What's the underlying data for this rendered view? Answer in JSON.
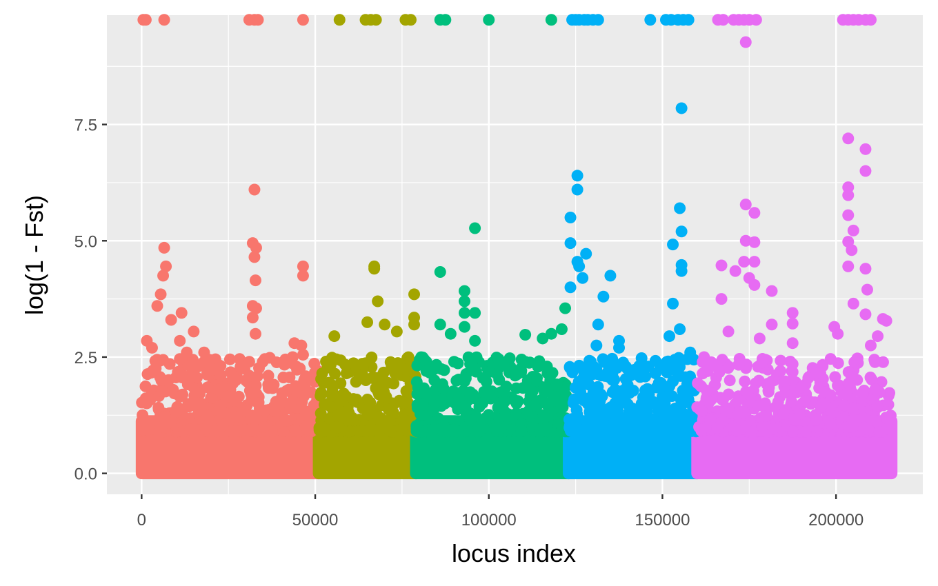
{
  "chart_data": {
    "type": "scatter",
    "title": "",
    "xlabel": "locus index",
    "ylabel": "log(1 - Fst)",
    "xlim": [
      -10000,
      225000
    ],
    "ylim": [
      -0.45,
      9.85
    ],
    "x_ticks": [
      0,
      50000,
      100000,
      150000,
      200000
    ],
    "x_tick_labels": [
      "0",
      "50000",
      "100000",
      "150000",
      "200000"
    ],
    "y_ticks": [
      0,
      2.5,
      5,
      7.5
    ],
    "y_tick_labels": [
      "0.0",
      "2.5",
      "5.0",
      "7.5"
    ],
    "grid": true,
    "legend": "none",
    "background": "#ebebeb",
    "grid_color": "#ffffff",
    "series": [
      {
        "color": "#f8766d",
        "x_range": [
          0,
          51000
        ],
        "points": [
          [
            500,
            9.75
          ],
          [
            1200,
            9.75
          ],
          [
            6500,
            9.75
          ],
          [
            31000,
            9.75
          ],
          [
            32500,
            9.75
          ],
          [
            33500,
            9.75
          ],
          [
            46500,
            9.75
          ],
          [
            6500,
            4.85
          ],
          [
            7000,
            4.45
          ],
          [
            6200,
            4.25
          ],
          [
            5500,
            3.85
          ],
          [
            4500,
            3.6
          ],
          [
            11500,
            3.45
          ],
          [
            15000,
            3.05
          ],
          [
            1500,
            2.85
          ],
          [
            3000,
            2.7
          ],
          [
            8500,
            3.3
          ],
          [
            11000,
            2.85
          ],
          [
            13000,
            2.6
          ],
          [
            18000,
            2.6
          ],
          [
            18000,
            2.4
          ],
          [
            32500,
            6.1
          ],
          [
            32000,
            4.95
          ],
          [
            33000,
            4.85
          ],
          [
            32500,
            4.65
          ],
          [
            32800,
            4.15
          ],
          [
            32000,
            3.6
          ],
          [
            33000,
            3.55
          ],
          [
            32000,
            3.35
          ],
          [
            32800,
            3.0
          ],
          [
            31000,
            2.4
          ],
          [
            31000,
            2.1
          ],
          [
            36500,
            2.1
          ],
          [
            30000,
            2.0
          ],
          [
            46500,
            4.45
          ],
          [
            46500,
            4.25
          ],
          [
            44000,
            2.8
          ],
          [
            46000,
            2.75
          ],
          [
            46500,
            2.55
          ],
          [
            43500,
            2.5
          ],
          [
            44500,
            2.3
          ],
          [
            19000,
            1.85
          ],
          [
            22000,
            1.8
          ],
          [
            25000,
            1.65
          ],
          [
            28000,
            1.65
          ],
          [
            35500,
            1.35
          ],
          [
            40000,
            1.5
          ]
        ]
      },
      {
        "color": "#a3a500",
        "x_range": [
          51000,
          79000
        ],
        "points": [
          [
            57000,
            9.75
          ],
          [
            64500,
            9.75
          ],
          [
            66000,
            9.75
          ],
          [
            67500,
            9.75
          ],
          [
            76000,
            9.75
          ],
          [
            77500,
            9.75
          ],
          [
            67000,
            4.45
          ],
          [
            67000,
            4.4
          ],
          [
            78500,
            3.85
          ],
          [
            68000,
            3.7
          ],
          [
            70000,
            3.2
          ],
          [
            65000,
            3.25
          ],
          [
            73500,
            3.05
          ],
          [
            55500,
            2.95
          ],
          [
            78500,
            3.35
          ],
          [
            78500,
            3.2
          ],
          [
            59000,
            2.15
          ],
          [
            52000,
            2.15
          ],
          [
            72000,
            2.3
          ],
          [
            75000,
            2.25
          ],
          [
            57500,
            1.55
          ],
          [
            61000,
            1.6
          ]
        ]
      },
      {
        "color": "#00bf7d",
        "x_range": [
          79000,
          123000
        ],
        "points": [
          [
            86000,
            9.75
          ],
          [
            87500,
            9.75
          ],
          [
            100000,
            9.75
          ],
          [
            118000,
            9.75
          ],
          [
            96000,
            5.27
          ],
          [
            86000,
            4.33
          ],
          [
            93000,
            3.92
          ],
          [
            93000,
            3.7
          ],
          [
            96000,
            3.45
          ],
          [
            93000,
            3.45
          ],
          [
            86000,
            3.2
          ],
          [
            93000,
            3.15
          ],
          [
            110500,
            2.98
          ],
          [
            96000,
            2.85
          ],
          [
            89000,
            3.0
          ],
          [
            82000,
            2.4
          ],
          [
            82000,
            2.2
          ],
          [
            110500,
            2.4
          ],
          [
            115500,
            2.9
          ],
          [
            118000,
            3.0
          ],
          [
            121000,
            3.1
          ],
          [
            122000,
            3.55
          ],
          [
            95000,
            2.3
          ],
          [
            90000,
            2.4
          ],
          [
            100000,
            1.7
          ],
          [
            104000,
            1.4
          ],
          [
            108000,
            1.5
          ],
          [
            112000,
            1.8
          ]
        ]
      },
      {
        "color": "#00b0f6",
        "x_range": [
          123000,
          160000
        ],
        "points": [
          [
            124000,
            9.75
          ],
          [
            125000,
            9.75
          ],
          [
            126000,
            9.75
          ],
          [
            127500,
            9.75
          ],
          [
            128500,
            9.75
          ],
          [
            130000,
            9.75
          ],
          [
            131500,
            9.75
          ],
          [
            146500,
            9.75
          ],
          [
            151000,
            9.75
          ],
          [
            152500,
            9.75
          ],
          [
            154500,
            9.75
          ],
          [
            156000,
            9.75
          ],
          [
            157500,
            9.75
          ],
          [
            155500,
            7.85
          ],
          [
            125500,
            6.4
          ],
          [
            125500,
            6.1
          ],
          [
            123500,
            5.5
          ],
          [
            155000,
            5.7
          ],
          [
            155500,
            5.2
          ],
          [
            123500,
            4.95
          ],
          [
            153000,
            4.92
          ],
          [
            128000,
            4.72
          ],
          [
            125500,
            4.55
          ],
          [
            126000,
            4.45
          ],
          [
            135000,
            4.25
          ],
          [
            127000,
            4.2
          ],
          [
            155500,
            4.48
          ],
          [
            155500,
            4.35
          ],
          [
            123500,
            4.0
          ],
          [
            133000,
            3.8
          ],
          [
            153000,
            3.65
          ],
          [
            131500,
            3.2
          ],
          [
            155000,
            3.1
          ],
          [
            152000,
            2.95
          ],
          [
            137500,
            2.85
          ],
          [
            137500,
            2.7
          ],
          [
            131000,
            2.75
          ],
          [
            158000,
            2.6
          ],
          [
            148000,
            2.42
          ],
          [
            148000,
            2.15
          ],
          [
            140000,
            1.9
          ],
          [
            144000,
            1.5
          ],
          [
            150000,
            1.65
          ],
          [
            142000,
            1.1
          ]
        ]
      },
      {
        "color": "#e76bf3",
        "x_range": [
          160000,
          216000
        ],
        "points": [
          [
            166000,
            9.75
          ],
          [
            167500,
            9.75
          ],
          [
            170500,
            9.75
          ],
          [
            172000,
            9.75
          ],
          [
            173500,
            9.75
          ],
          [
            175000,
            9.75
          ],
          [
            177000,
            9.75
          ],
          [
            202000,
            9.75
          ],
          [
            203500,
            9.75
          ],
          [
            205000,
            9.75
          ],
          [
            206500,
            9.75
          ],
          [
            208500,
            9.75
          ],
          [
            210000,
            9.75
          ],
          [
            174000,
            9.27
          ],
          [
            203500,
            7.2
          ],
          [
            208500,
            6.97
          ],
          [
            203500,
            6.15
          ],
          [
            203500,
            5.98
          ],
          [
            208500,
            6.5
          ],
          [
            174000,
            5.78
          ],
          [
            176500,
            5.6
          ],
          [
            203500,
            5.55
          ],
          [
            205000,
            5.22
          ],
          [
            174000,
            5.0
          ],
          [
            176500,
            4.97
          ],
          [
            203500,
            4.98
          ],
          [
            204500,
            4.8
          ],
          [
            173500,
            4.55
          ],
          [
            176500,
            4.55
          ],
          [
            167000,
            4.47
          ],
          [
            171000,
            4.35
          ],
          [
            208500,
            4.4
          ],
          [
            203500,
            4.45
          ],
          [
            175000,
            4.2
          ],
          [
            176500,
            4.05
          ],
          [
            181500,
            3.92
          ],
          [
            209000,
            3.95
          ],
          [
            167000,
            3.75
          ],
          [
            205000,
            3.65
          ],
          [
            187500,
            3.45
          ],
          [
            181500,
            3.2
          ],
          [
            187500,
            3.22
          ],
          [
            208500,
            3.42
          ],
          [
            213500,
            3.32
          ],
          [
            214500,
            3.28
          ],
          [
            199500,
            3.15
          ],
          [
            200500,
            3.0
          ],
          [
            187500,
            2.8
          ],
          [
            187500,
            2.35
          ],
          [
            192000,
            2.05
          ],
          [
            195500,
            2.15
          ],
          [
            184000,
            2.2
          ],
          [
            162000,
            2.5
          ],
          [
            169000,
            3.05
          ],
          [
            178000,
            2.9
          ],
          [
            212000,
            2.95
          ],
          [
            210000,
            2.75
          ],
          [
            190000,
            1.85
          ],
          [
            197000,
            1.75
          ]
        ]
      }
    ]
  }
}
